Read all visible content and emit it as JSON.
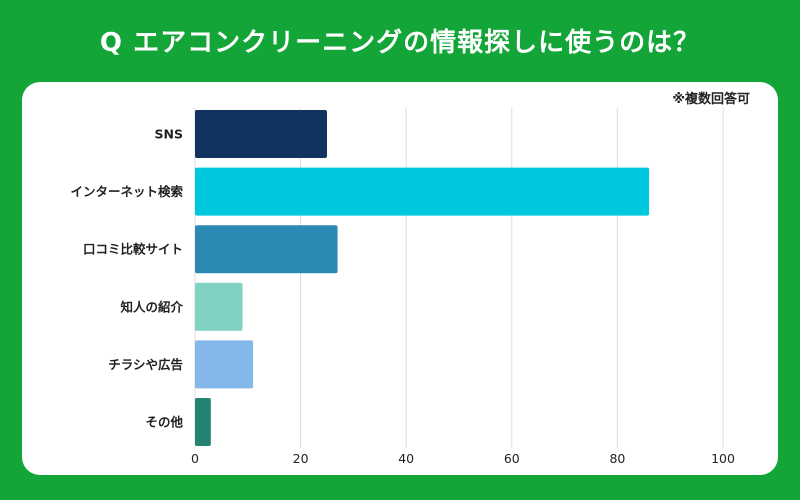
{
  "title": "Q エアコンクリーニングの情報探しに使うのは？",
  "note": "※複数回答可",
  "chart_data": {
    "type": "bar",
    "orientation": "horizontal",
    "categories": [
      "SNS",
      "インターネット検索",
      "口コミ比較サイト",
      "知人の紹介",
      "チラシや広告",
      "その他"
    ],
    "values": [
      25,
      86,
      27,
      9,
      11,
      3
    ],
    "colors": [
      "#10335f",
      "#00c8dc",
      "#2b8ab4",
      "#80d3c3",
      "#85b8ea",
      "#248370"
    ],
    "xlim": [
      0,
      100
    ],
    "xticks": [
      "0",
      "20",
      "40",
      "60",
      "80",
      "100"
    ],
    "grid": true,
    "title": "",
    "xlabel": "",
    "ylabel": ""
  }
}
